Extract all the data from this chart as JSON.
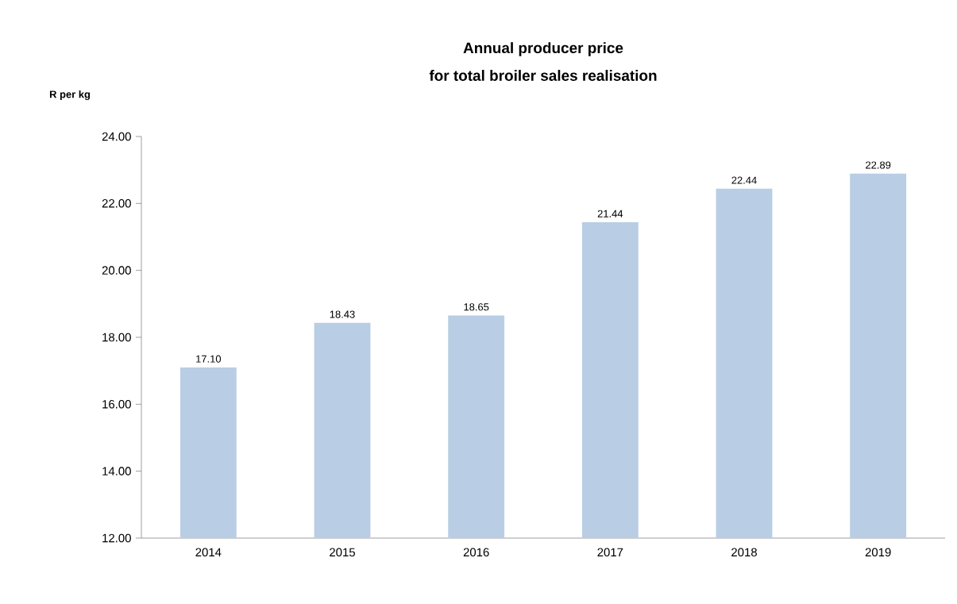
{
  "chart_data": {
    "type": "bar",
    "title": "Annual producer price",
    "subtitle": "for total broiler sales realisation",
    "ylabel": "R per kg",
    "categories": [
      "2014",
      "2015",
      "2016",
      "2017",
      "2018",
      "2019"
    ],
    "values": [
      17.1,
      18.43,
      18.65,
      21.44,
      22.44,
      22.89
    ],
    "value_labels": [
      "17.10",
      "18.43",
      "18.65",
      "21.44",
      "22.44",
      "22.89"
    ],
    "color": "#b9cde5",
    "ylim": [
      12,
      24
    ],
    "yticks": [
      {
        "value": 12,
        "label": "12.00"
      },
      {
        "value": 14,
        "label": "14.00"
      },
      {
        "value": 16,
        "label": "16.00"
      },
      {
        "value": 18,
        "label": "18.00"
      },
      {
        "value": 20,
        "label": "20.00"
      },
      {
        "value": 22,
        "label": "22.00"
      },
      {
        "value": 24,
        "label": "24.00"
      }
    ],
    "grid": false
  }
}
